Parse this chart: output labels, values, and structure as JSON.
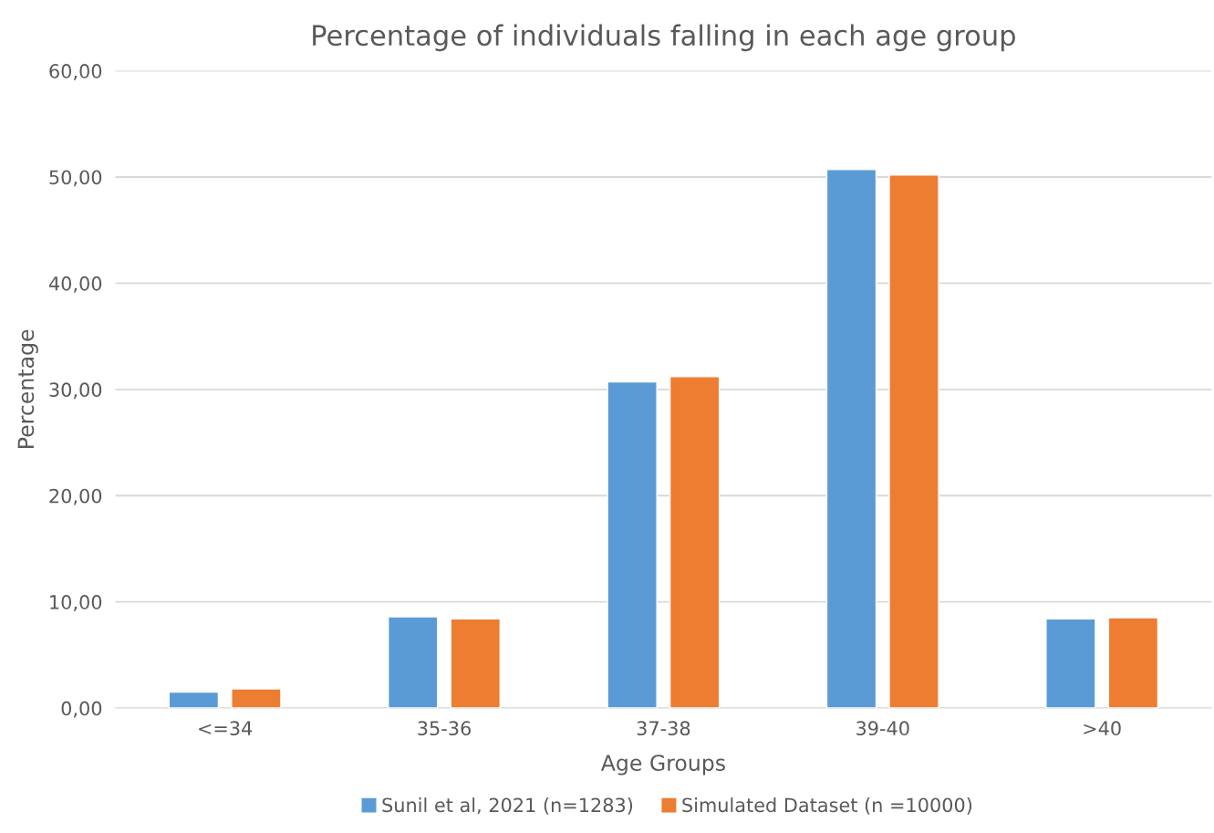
{
  "chart_data": {
    "type": "bar",
    "title": "Percentage of individuals falling in each age group",
    "xlabel": "Age Groups",
    "ylabel": "Percentage",
    "categories": [
      "<=34",
      "35-36",
      "37-38",
      "39-40",
      ">40"
    ],
    "series": [
      {
        "name": "Sunil et al, 2021 (n=1283)",
        "color": "#5b9bd5",
        "values": [
          1.5,
          8.6,
          30.7,
          50.7,
          8.4
        ]
      },
      {
        "name": "Simulated Dataset (n =10000)",
        "color": "#ed7d31",
        "values": [
          1.8,
          8.4,
          31.2,
          50.2,
          8.5
        ]
      }
    ],
    "ylim": [
      0,
      60
    ],
    "yticks": [
      {
        "value": 0,
        "label": "0,00"
      },
      {
        "value": 10,
        "label": "10,00"
      },
      {
        "value": 20,
        "label": "20,00"
      },
      {
        "value": 30,
        "label": "30,00"
      },
      {
        "value": 40,
        "label": "40,00"
      },
      {
        "value": 50,
        "label": "50,00"
      },
      {
        "value": 60,
        "label": "60,00"
      }
    ],
    "grid": "y",
    "legend": "bottom"
  }
}
